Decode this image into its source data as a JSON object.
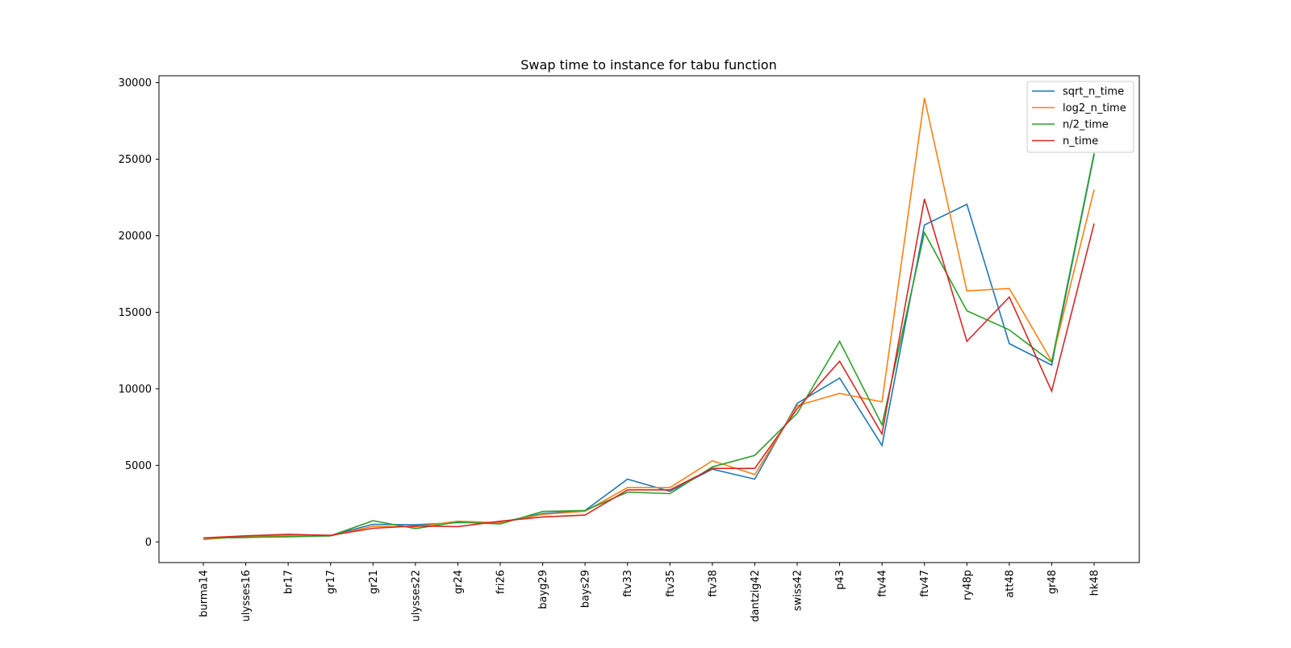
{
  "chart_data": {
    "type": "line",
    "title": "Swap time to instance for tabu function",
    "xlabel": "",
    "ylabel": "",
    "ylim": [
      -1350,
      30450
    ],
    "yticks": [
      0,
      5000,
      10000,
      15000,
      20000,
      25000,
      30000
    ],
    "ytick_labels": [
      "0",
      "5000",
      "10000",
      "15000",
      "20000",
      "25000",
      "30000"
    ],
    "grid": false,
    "legend_position": "top-right",
    "categories": [
      "burma14",
      "ulysses16",
      "br17",
      "gr17",
      "gr21",
      "ulysses22",
      "gr24",
      "fri26",
      "bayg29",
      "bays29",
      "ftv33",
      "ftv35",
      "ftv38",
      "dantzig42",
      "swiss42",
      "p43",
      "ftv44",
      "ftv47",
      "ry48p",
      "att48",
      "gr48",
      "hk48"
    ],
    "series": [
      {
        "name": "sqrt_n_time",
        "color": "#1f77b4",
        "values": [
          250,
          290,
          420,
          420,
          1150,
          1120,
          1260,
          1270,
          1850,
          2050,
          4100,
          3300,
          4750,
          4100,
          9050,
          10700,
          6300,
          20700,
          22050,
          12950,
          11550,
          25300
        ]
      },
      {
        "name": "log2_n_time",
        "color": "#ff7f0e",
        "values": [
          150,
          370,
          410,
          390,
          1020,
          990,
          1350,
          1250,
          1800,
          2000,
          3550,
          3550,
          5300,
          4400,
          8900,
          9700,
          9150,
          29000,
          16400,
          16550,
          11800,
          23000
        ]
      },
      {
        "name": "n/2_time",
        "color": "#2ca02c",
        "values": [
          240,
          300,
          330,
          400,
          1380,
          870,
          1300,
          1170,
          1990,
          2050,
          3250,
          3150,
          4900,
          5650,
          8400,
          13100,
          7650,
          20200,
          15100,
          13850,
          11750,
          25400
        ]
      },
      {
        "name": "n_time",
        "color": "#d62728",
        "values": [
          260,
          400,
          500,
          430,
          890,
          1040,
          1000,
          1350,
          1630,
          1750,
          3400,
          3400,
          4800,
          4800,
          8700,
          11800,
          7050,
          22400,
          13100,
          16000,
          9850,
          20800
        ]
      }
    ]
  }
}
